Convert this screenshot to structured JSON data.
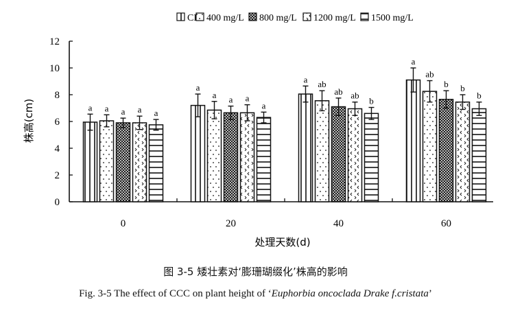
{
  "chart_data": {
    "type": "bar",
    "title": "",
    "xlabel": "处理天数(d)",
    "ylabel": "株高(cm)",
    "ylim": [
      0,
      12
    ],
    "yticks": [
      0,
      2,
      4,
      6,
      8,
      10,
      12
    ],
    "categories": [
      "0",
      "20",
      "40",
      "60"
    ],
    "legend_position": "top-right",
    "grid": false,
    "series": [
      {
        "name": "CK",
        "pattern": "vertical-lines",
        "values": [
          5.95,
          7.2,
          8.05,
          9.1
        ],
        "errors": [
          0.6,
          0.85,
          0.6,
          0.9
        ],
        "letters": [
          "a",
          "a",
          "a",
          "a"
        ]
      },
      {
        "name": "400 mg/L",
        "pattern": "dots",
        "values": [
          6.05,
          6.85,
          7.55,
          8.25
        ],
        "errors": [
          0.45,
          0.65,
          0.75,
          0.8
        ],
        "letters": [
          "a",
          "a",
          "ab",
          "ab"
        ]
      },
      {
        "name": "800 mg/L",
        "pattern": "crosshatch",
        "values": [
          5.9,
          6.65,
          7.1,
          7.65
        ],
        "errors": [
          0.35,
          0.5,
          0.65,
          0.65
        ],
        "letters": [
          "a",
          "a",
          "ab",
          "b"
        ]
      },
      {
        "name": "1200 mg/L",
        "pattern": "chevrons",
        "values": [
          5.9,
          6.65,
          6.95,
          7.45
        ],
        "errors": [
          0.5,
          0.6,
          0.5,
          0.55
        ],
        "letters": [
          "a",
          "a",
          "ab",
          "b"
        ]
      },
      {
        "name": "1500 mg/L",
        "pattern": "horizontal-lines",
        "values": [
          5.75,
          6.3,
          6.6,
          6.95
        ],
        "errors": [
          0.4,
          0.4,
          0.45,
          0.5
        ],
        "letters": [
          "a",
          "a",
          "b",
          "b"
        ]
      }
    ]
  },
  "captions": {
    "cn": "图 3-5  矮壮素对‘膨珊瑚缀化’株高的影响",
    "en_prefix": "Fig. 3-5 The effect of CCC on plant height of ‘",
    "en_italic": "Euphorbia oncoclada Drake f.cristata",
    "en_suffix": "’"
  }
}
